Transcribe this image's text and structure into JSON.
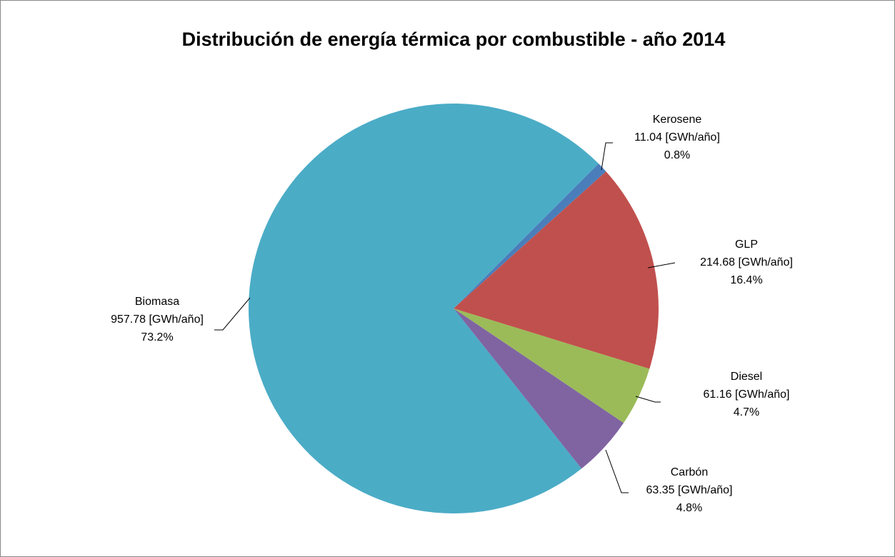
{
  "chart_data": {
    "type": "pie",
    "title": "Distribución de energía térmica por combustible - año 2014",
    "categories": [
      "Kerosene",
      "GLP",
      "Diesel",
      "Carbón",
      "Biomasa"
    ],
    "values": [
      11.04,
      214.68,
      61.16,
      63.35,
      957.78
    ],
    "value_labels": [
      "11.04 [GWh/año]",
      "214.68 [GWh/año]",
      "61.16 [GWh/año]",
      "63.35 [GWh/año]",
      "957.78 [GWh/año]"
    ],
    "percents": [
      0.8,
      16.4,
      4.7,
      4.8,
      73.2
    ],
    "percent_labels": [
      "0.8%",
      "16.4%",
      "4.7%",
      "4.8%",
      "73.2%"
    ],
    "colors": [
      "#4a7ebb",
      "#c0504d",
      "#9bbb59",
      "#8064a2",
      "#4bacc6"
    ]
  }
}
